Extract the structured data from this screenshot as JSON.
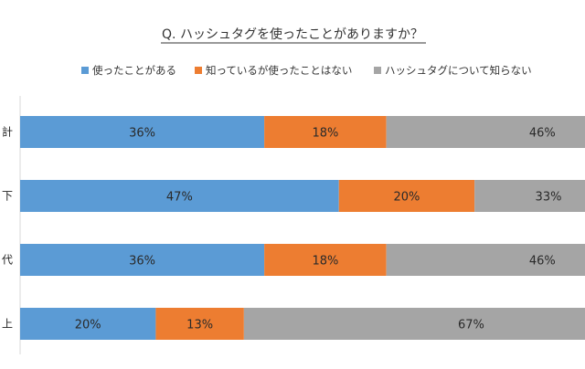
{
  "chart_data": {
    "type": "bar",
    "orientation": "horizontal",
    "stacked": true,
    "title": "Q.  ハッシュタグを使ったことがありますか？",
    "legend_position": "top",
    "categories": [
      "計",
      "下",
      "代",
      "上"
    ],
    "series": [
      {
        "name": "使ったことがある",
        "color": "#5b9bd5",
        "values": [
          36,
          47,
          36,
          20
        ]
      },
      {
        "name": "知っているが使ったことはない",
        "color": "#ed7d31",
        "values": [
          18,
          20,
          18,
          13
        ]
      },
      {
        "name": "ハッシュタグについて知らない",
        "color": "#a5a5a5",
        "values": [
          46,
          33,
          46,
          67
        ]
      }
    ],
    "value_suffix": "%",
    "xlim": [
      0,
      100
    ],
    "grid": false
  }
}
